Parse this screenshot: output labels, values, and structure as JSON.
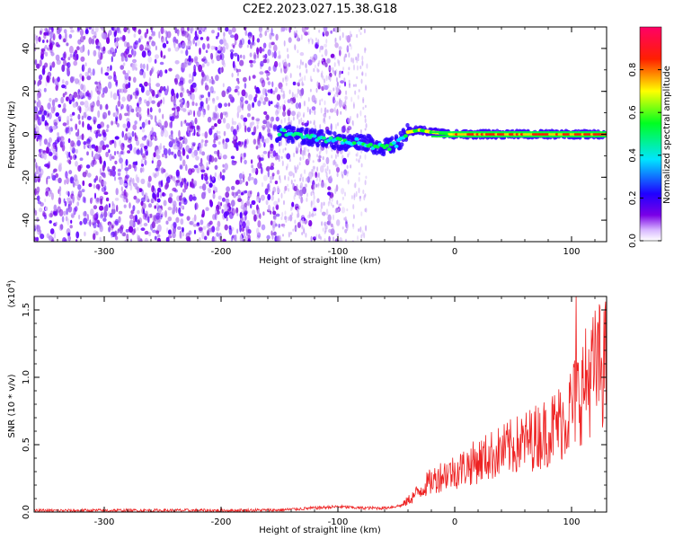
{
  "figure": {
    "title": "C2E2.2023.027.15.38.G18"
  },
  "chart_data": [
    {
      "type": "heatmap",
      "xlabel": "Height of straight line (km)",
      "ylabel": "Frequency (Hz)",
      "xlim": [
        -360,
        130
      ],
      "ylim": [
        -50,
        50
      ],
      "x_ticks": [
        -300,
        -200,
        -100,
        0,
        100
      ],
      "x_tick_labels": [
        "-300",
        "-200",
        "-100",
        "0",
        "100"
      ],
      "y_ticks": [
        -40,
        -20,
        0,
        20,
        40
      ],
      "y_tick_labels": [
        "-40",
        "-20",
        "0",
        "20",
        "40"
      ],
      "colorbar": {
        "label": "Normalized spectral amplitude",
        "range": [
          0,
          1
        ],
        "ticks": [
          0.0,
          0.2,
          0.4,
          0.6,
          0.8
        ],
        "tick_labels": [
          "0.0",
          "0.2",
          "0.4",
          "0.6",
          "0.8"
        ],
        "colormap": [
          "#ffffff",
          "#7a00e6",
          "#0000ff",
          "#00e5ff",
          "#00ff00",
          "#ffff00",
          "#ff0000",
          "#ff0066"
        ]
      },
      "ridge": [
        {
          "x": -150,
          "y": 1
        },
        {
          "x": -130,
          "y": -1
        },
        {
          "x": -110,
          "y": -2
        },
        {
          "x": -95,
          "y": -4
        },
        {
          "x": -80,
          "y": -3
        },
        {
          "x": -70,
          "y": -5
        },
        {
          "x": -60,
          "y": -6
        },
        {
          "x": -52,
          "y": -5
        },
        {
          "x": -45,
          "y": -2
        },
        {
          "x": -40,
          "y": 1
        },
        {
          "x": -30,
          "y": 2
        },
        {
          "x": -20,
          "y": 1
        },
        {
          "x": 0,
          "y": 0
        },
        {
          "x": 50,
          "y": 0
        },
        {
          "x": 100,
          "y": 0
        },
        {
          "x": 130,
          "y": 0
        }
      ],
      "grid": false
    },
    {
      "type": "line",
      "xlabel": "Height of straight line (km)",
      "ylabel": "SNR (10 * v/v)",
      "y_scale_label": "(x10",
      "y_scale_exponent": "4",
      "xlim": [
        -360,
        130
      ],
      "ylim": [
        0,
        1.6
      ],
      "x_ticks": [
        -300,
        -200,
        -100,
        0,
        100
      ],
      "x_tick_labels": [
        "-300",
        "-200",
        "-100",
        "0",
        "100"
      ],
      "y_ticks": [
        0.0,
        0.5,
        1.0,
        1.5
      ],
      "y_tick_labels": [
        "0.0",
        "0.5",
        "1.0",
        "1.5"
      ],
      "series": [
        {
          "color": "#ee2222",
          "points": [
            {
              "x": -360,
              "y": 0.01
            },
            {
              "x": -300,
              "y": 0.012
            },
            {
              "x": -200,
              "y": 0.012
            },
            {
              "x": -150,
              "y": 0.015
            },
            {
              "x": -120,
              "y": 0.03
            },
            {
              "x": -100,
              "y": 0.04
            },
            {
              "x": -80,
              "y": 0.03
            },
            {
              "x": -60,
              "y": 0.03
            },
            {
              "x": -45,
              "y": 0.05
            },
            {
              "x": -35,
              "y": 0.12
            },
            {
              "x": -25,
              "y": 0.2
            },
            {
              "x": -10,
              "y": 0.28
            },
            {
              "x": 0,
              "y": 0.3
            },
            {
              "x": 20,
              "y": 0.38
            },
            {
              "x": 40,
              "y": 0.45
            },
            {
              "x": 60,
              "y": 0.52
            },
            {
              "x": 80,
              "y": 0.6
            },
            {
              "x": 95,
              "y": 0.7
            },
            {
              "x": 105,
              "y": 0.85
            },
            {
              "x": 115,
              "y": 1.0
            },
            {
              "x": 125,
              "y": 1.1
            },
            {
              "x": 130,
              "y": 1.1
            }
          ],
          "peak": {
            "x": 104,
            "y": 1.62
          }
        }
      ],
      "grid": false
    }
  ]
}
